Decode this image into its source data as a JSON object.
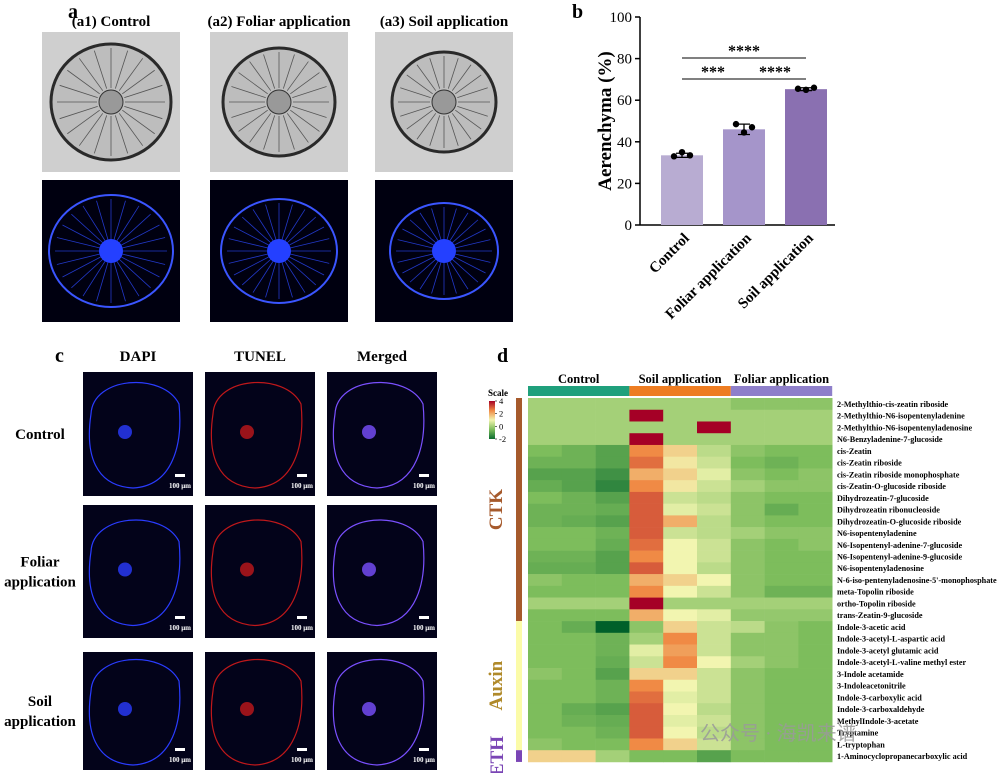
{
  "panel_labels": [
    "a",
    "b",
    "c",
    "d"
  ],
  "panel_a": {
    "titles": [
      "(a1) Control",
      "(a2) Foliar application",
      "(a3) Soil application"
    ]
  },
  "panel_c": {
    "columns": [
      "DAPI",
      "TUNEL",
      "Merged"
    ],
    "rows": [
      [
        "Control"
      ],
      [
        "Foliar",
        "application"
      ],
      [
        "Soil",
        "application"
      ]
    ],
    "scale_bar": "100 μm"
  },
  "watermark": "公众号 · 海凯来谱",
  "chart_data": [
    {
      "type": "bar",
      "ylabel": "Aerenchyma (%)",
      "categories": [
        "Control",
        "Foliar application",
        "Soil application"
      ],
      "values": [
        33.5,
        46,
        65.3
      ],
      "errors": [
        1,
        2.5,
        0.7
      ],
      "points": [
        [
          33,
          35,
          33.5
        ],
        [
          48.5,
          44.5,
          47
        ],
        [
          65.5,
          65,
          66
        ]
      ],
      "colors": [
        "#b8acd2",
        "#a595ca",
        "#8a70b1"
      ],
      "ylim": [
        0,
        100
      ],
      "yticks": [
        0,
        20,
        40,
        60,
        80,
        100
      ],
      "significance": [
        {
          "pair": [
            0,
            1
          ],
          "label": "***"
        },
        {
          "pair": [
            1,
            2
          ],
          "label": "****"
        },
        {
          "pair": [
            0,
            2
          ],
          "label": "****"
        }
      ]
    },
    {
      "type": "heatmap",
      "scale_title": "Scale",
      "clim": [
        -2,
        4
      ],
      "cticks": [
        4,
        2,
        0,
        -2
      ],
      "color_stops": [
        "#0a6b30",
        "#7dbd5c",
        "#f2f5b0",
        "#f08a45",
        "#a50026"
      ],
      "groups": [
        {
          "name": "Control",
          "color": "#1fa07c"
        },
        {
          "name": "Soil application",
          "color": "#ee7d22"
        },
        {
          "name": "Foliar application",
          "color": "#8e7fca"
        }
      ],
      "row_groups": [
        {
          "name": "CTK",
          "color": "#a65a2c",
          "rows": [
            {
              "name": "2-Methylthio-cis-zeatin riboside",
              "values": [
                [
                  0,
                  0,
                  0
                ],
                [
                  0,
                  0,
                  0
                ],
                [
                  -0.3,
                  -0.3,
                  -0.3
                ]
              ]
            },
            {
              "name": "2-Methylthio-N6-isopentenyladenine",
              "values": [
                [
                  0,
                  0,
                  0
                ],
                [
                  4,
                  0,
                  0
                ],
                [
                  0,
                  0,
                  0
                ]
              ]
            },
            {
              "name": "2-Methylthio-N6-isopentenyladenosine",
              "values": [
                [
                  0,
                  0,
                  0
                ],
                [
                  0,
                  0,
                  4
                ],
                [
                  0,
                  0,
                  0
                ]
              ]
            },
            {
              "name": "N6-Benzyladenine-7-glucoside",
              "values": [
                [
                  0,
                  0,
                  0
                ],
                [
                  4,
                  0,
                  0
                ],
                [
                  0,
                  0,
                  0
                ]
              ]
            },
            {
              "name": "cis-Zeatin",
              "values": [
                [
                  -0.5,
                  -0.7,
                  -1
                ],
                [
                  2.5,
                  1.5,
                  0.3
                ],
                [
                  -0.3,
                  -0.5,
                  -0.5
                ]
              ]
            },
            {
              "name": "cis-Zeatin riboside",
              "values": [
                [
                  -0.7,
                  -0.7,
                  -1
                ],
                [
                  2.8,
                  1.2,
                  0.5
                ],
                [
                  -0.5,
                  -0.7,
                  -0.5
                ]
              ]
            },
            {
              "name": "cis-Zeatin riboside monophosphate",
              "values": [
                [
                  -1,
                  -1,
                  -1.3
                ],
                [
                  2,
                  1.5,
                  0.8
                ],
                [
                  -0.3,
                  -0.5,
                  -0.3
                ]
              ]
            },
            {
              "name": "cis-Zeatin-O-glucoside riboside",
              "values": [
                [
                  -0.8,
                  -1,
                  -1.5
                ],
                [
                  2.5,
                  1.2,
                  0.5
                ],
                [
                  0,
                  -0.3,
                  -0.3
                ]
              ]
            },
            {
              "name": "Dihydrozeatin-7-glucoside",
              "values": [
                [
                  -0.5,
                  -0.7,
                  -1
                ],
                [
                  3,
                  0.5,
                  0.3
                ],
                [
                  -0.3,
                  -0.5,
                  -0.5
                ]
              ]
            },
            {
              "name": "Dihydrozeatin ribonucleoside",
              "values": [
                [
                  -0.7,
                  -0.7,
                  -0.8
                ],
                [
                  3,
                  0.8,
                  0.5
                ],
                [
                  -0.3,
                  -0.8,
                  -0.5
                ]
              ]
            },
            {
              "name": "Dihydrozeatin-O-glucoside riboside",
              "values": [
                [
                  -0.7,
                  -0.8,
                  -1
                ],
                [
                  3,
                  2,
                  0.3
                ],
                [
                  -0.3,
                  -0.5,
                  -0.5
                ]
              ]
            },
            {
              "name": "N6-isopentenyladenine",
              "values": [
                [
                  -0.5,
                  -0.5,
                  -0.7
                ],
                [
                  3,
                  0.5,
                  0.3
                ],
                [
                  0,
                  -0.3,
                  -0.3
                ]
              ]
            },
            {
              "name": "N6-Isopentenyl-adenine-7-glucoside",
              "values": [
                [
                  -0.5,
                  -0.5,
                  -0.8
                ],
                [
                  2.8,
                  1,
                  0.5
                ],
                [
                  -0.3,
                  -0.5,
                  -0.3
                ]
              ]
            },
            {
              "name": "N6-Isopentenyl-adenine-9-glucoside",
              "values": [
                [
                  -0.7,
                  -0.7,
                  -1
                ],
                [
                  2.5,
                  1,
                  0.5
                ],
                [
                  -0.3,
                  -0.5,
                  -0.5
                ]
              ]
            },
            {
              "name": "N6-isopentenyladenosine",
              "values": [
                [
                  -0.8,
                  -0.8,
                  -1
                ],
                [
                  3,
                  1,
                  0.3
                ],
                [
                  -0.3,
                  -0.5,
                  -0.5
                ]
              ]
            },
            {
              "name": "N-6-iso-pentenyladenosine-5'-monophosphate",
              "values": [
                [
                  -0.3,
                  -0.5,
                  -0.5
                ],
                [
                  2,
                  1.5,
                  1
                ],
                [
                  -0.3,
                  -0.5,
                  -0.5
                ]
              ]
            },
            {
              "name": "meta-Topolin riboside",
              "values": [
                [
                  -0.5,
                  -0.5,
                  -0.5
                ],
                [
                  2.5,
                  1,
                  0.5
                ],
                [
                  -0.3,
                  -0.7,
                  -0.7
                ]
              ]
            },
            {
              "name": "ortho-Topolin riboside",
              "values": [
                [
                  0,
                  0,
                  0
                ],
                [
                  4,
                  0,
                  0
                ],
                [
                  0,
                  0,
                  0
                ]
              ]
            },
            {
              "name": "trans-Zeatin-9-glucoside",
              "values": [
                [
                  -0.5,
                  -0.5,
                  -0.5
                ],
                [
                  2,
                  1,
                  0.8
                ],
                [
                  -0.2,
                  -0.2,
                  -0.2
                ]
              ]
            }
          ]
        },
        {
          "name": "Auxin",
          "color": "#fbfba8",
          "text_color": "#b08a2a",
          "rows": [
            {
              "name": "Indole-3-acetic acid",
              "values": [
                [
                  -0.5,
                  -0.8,
                  -2.2
                ],
                [
                  -0.3,
                  1.5,
                  0.5
                ],
                [
                  0.3,
                  -0.3,
                  -0.5
                ]
              ]
            },
            {
              "name": "Indole-3-acetyl-L-aspartic acid",
              "values": [
                [
                  -0.5,
                  -0.5,
                  -0.7
                ],
                [
                  0,
                  2.5,
                  0.5
                ],
                [
                  -0.3,
                  -0.3,
                  -0.5
                ]
              ]
            },
            {
              "name": "Indole-3-acetyl glutamic acid",
              "values": [
                [
                  -0.5,
                  -0.5,
                  -0.7
                ],
                [
                  0.8,
                  2.2,
                  0.5
                ],
                [
                  -0.3,
                  -0.3,
                  -0.5
                ]
              ]
            },
            {
              "name": "Indole-3-acetyl-L-valine methyl ester",
              "values": [
                [
                  -0.5,
                  -0.5,
                  -0.8
                ],
                [
                  0.5,
                  2.5,
                  1
                ],
                [
                  0,
                  -0.3,
                  -0.5
                ]
              ]
            },
            {
              "name": "3-Indole acetamide",
              "values": [
                [
                  -0.3,
                  -0.5,
                  -1
                ],
                [
                  1.5,
                  1.5,
                  0.5
                ],
                [
                  -0.3,
                  -0.5,
                  -0.5
                ]
              ]
            },
            {
              "name": "3-Indoleacetonitrile",
              "values": [
                [
                  -0.5,
                  -0.5,
                  -0.7
                ],
                [
                  2.5,
                  1,
                  0.5
                ],
                [
                  -0.3,
                  -0.5,
                  -0.5
                ]
              ]
            },
            {
              "name": "Indole-3-carboxylic acid",
              "values": [
                [
                  -0.5,
                  -0.5,
                  -0.7
                ],
                [
                  2.8,
                  0.8,
                  0.5
                ],
                [
                  -0.3,
                  -0.5,
                  -0.5
                ]
              ]
            },
            {
              "name": "Indole-3-carboxaldehyde",
              "values": [
                [
                  -0.5,
                  -0.8,
                  -1
                ],
                [
                  3,
                  1,
                  0.3
                ],
                [
                  -0.3,
                  -0.5,
                  -0.5
                ]
              ]
            },
            {
              "name": "MethylIndole-3-acetate",
              "values": [
                [
                  -0.5,
                  -0.7,
                  -0.8
                ],
                [
                  3,
                  0.8,
                  0.5
                ],
                [
                  -0.3,
                  -0.5,
                  -0.5
                ]
              ]
            },
            {
              "name": "Tryptamine",
              "values": [
                [
                  -0.5,
                  -0.5,
                  -0.7
                ],
                [
                  3,
                  1,
                  0.3
                ],
                [
                  -0.3,
                  -0.5,
                  -0.5
                ]
              ]
            },
            {
              "name": "L-tryptophan",
              "values": [
                [
                  -0.3,
                  -0.5,
                  -0.5
                ],
                [
                  2.5,
                  1.5,
                  0.5
                ],
                [
                  -0.3,
                  -0.5,
                  -0.5
                ]
              ]
            }
          ]
        },
        {
          "name": "ETH",
          "color": "#7a45b5",
          "rows": [
            {
              "name": "1-Aminocyclopropanecarboxylic acid",
              "values": [
                [
                  1.5,
                  1.5,
                  0
                ],
                [
                  -0.5,
                  -0.5,
                  -1
                ],
                [
                  -0.5,
                  -0.5,
                  -0.5
                ]
              ]
            }
          ]
        }
      ]
    }
  ]
}
